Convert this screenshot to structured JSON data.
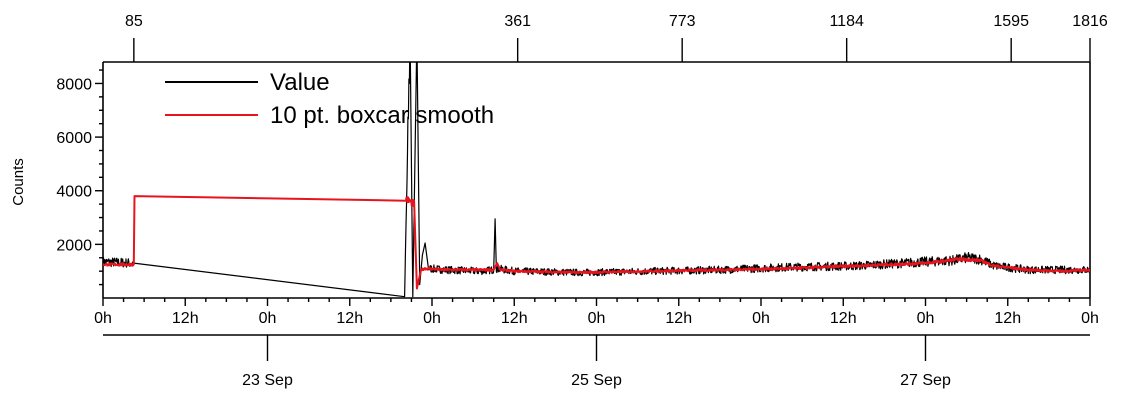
{
  "chart_data": {
    "type": "line",
    "title": "",
    "ylabel": "Counts",
    "ylim": [
      0,
      8800
    ],
    "xlim_hours": [
      0,
      144
    ],
    "grid": false,
    "legend_position": "top-left",
    "colors": {
      "value": "#000000",
      "smooth": "#e8141d"
    },
    "y_ticks": [
      2000,
      4000,
      6000,
      8000
    ],
    "y_tick_labels": [
      "2000",
      "4000",
      "6000",
      "8000"
    ],
    "x_ticks_hours": [
      0,
      12,
      24,
      36,
      48,
      60,
      72,
      84,
      96,
      108,
      120,
      132,
      144
    ],
    "x_tick_labels": [
      "0h",
      "12h",
      "0h",
      "12h",
      "0h",
      "12h",
      "0h",
      "12h",
      "0h",
      "12h",
      "0h",
      "12h",
      "0h"
    ],
    "date_axis": {
      "ticks_hours": [
        24,
        72,
        120
      ],
      "labels": [
        "23 Sep",
        "25 Sep",
        "27 Sep"
      ]
    },
    "top_axis": {
      "ticks_hours": [
        4.5,
        60.5,
        84.5,
        108.5,
        132.5,
        144
      ],
      "labels": [
        "85",
        "361",
        "773",
        "1184",
        "1595",
        "1816"
      ]
    },
    "series": [
      {
        "name": "Value",
        "color": "#000000",
        "noise": 150,
        "x_hours": [
          0,
          4.5,
          44,
          44.8,
          45.2,
          45.8,
          46.2,
          46.6,
          47.0,
          47.5,
          50,
          55,
          57,
          57.2,
          57.4,
          60,
          70,
          80,
          90,
          100,
          110,
          120,
          124,
          126,
          128,
          130,
          135,
          140,
          144
        ],
        "y": [
          1350,
          1300,
          50,
          9800,
          50,
          9800,
          500,
          1600,
          2050,
          1100,
          1050,
          1000,
          1050,
          2950,
          1100,
          1000,
          950,
          1000,
          1050,
          1150,
          1200,
          1350,
          1400,
          1500,
          1450,
          1200,
          1050,
          1050,
          1050
        ]
      },
      {
        "name": "10 pt. boxcar smooth",
        "color": "#e8141d",
        "noise": 40,
        "x_hours": [
          0,
          4.5,
          4.6,
          44.2,
          45.4,
          45.8,
          46.4,
          47.0,
          50,
          57,
          57.5,
          58,
          60,
          70,
          80,
          90,
          100,
          110,
          120,
          125,
          128,
          130,
          135,
          140,
          144
        ],
        "y": [
          1250,
          1250,
          3800,
          3700,
          3500,
          350,
          1050,
          1100,
          1050,
          1050,
          1300,
          1050,
          1000,
          950,
          1000,
          1050,
          1100,
          1200,
          1300,
          1450,
          1400,
          1200,
          1050,
          1000,
          1050
        ]
      }
    ]
  }
}
